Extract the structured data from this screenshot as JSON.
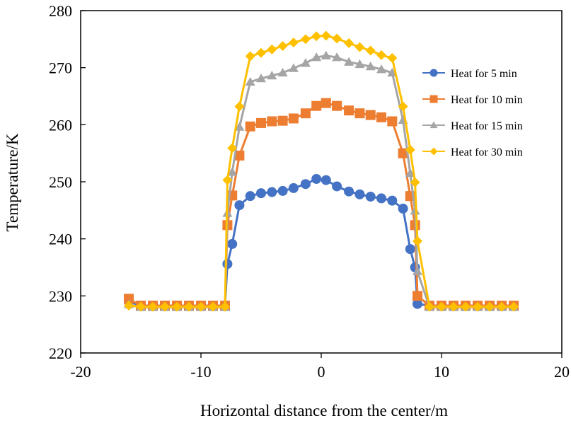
{
  "chart_data": {
    "type": "line",
    "title": "",
    "xlabel": "Horizontal distance from the center/m",
    "ylabel": "Temperature/K",
    "xlim": [
      -20,
      20
    ],
    "ylim": [
      220,
      280
    ],
    "xticks": [
      -20,
      -10,
      0,
      10,
      20
    ],
    "yticks": [
      220,
      230,
      240,
      250,
      260,
      270,
      280
    ],
    "grid": false,
    "legend_position": "right",
    "series": [
      {
        "name": "Heat for 5 min",
        "color": "#4472C4",
        "marker": "circle",
        "x": [
          -16,
          -15,
          -14,
          -13,
          -12,
          -11,
          -10,
          -9,
          -8,
          -7.8,
          -7.4,
          -6.8,
          -5.9,
          -5,
          -4.1,
          -3.2,
          -2.3,
          -1.3,
          -0.4,
          0.4,
          1.3,
          2.3,
          3.2,
          4.1,
          5,
          5.9,
          6.8,
          7.4,
          7.8,
          8,
          9,
          10,
          11,
          12,
          13,
          14,
          15,
          16
        ],
        "y": [
          229,
          228.3,
          228.3,
          228.3,
          228.3,
          228.3,
          228.3,
          228.3,
          228.3,
          235.6,
          239.1,
          245.9,
          247.5,
          248,
          248.2,
          248.4,
          248.9,
          249.6,
          250.5,
          250.3,
          249.2,
          248.3,
          247.8,
          247.4,
          247.1,
          246.7,
          245.3,
          238.2,
          235,
          228.6,
          228.3,
          228.3,
          228.3,
          228.3,
          228.3,
          228.3,
          228.3,
          228.3
        ]
      },
      {
        "name": "Heat for 10 min",
        "color": "#ED7D31",
        "marker": "square",
        "x": [
          -16,
          -15,
          -14,
          -13,
          -12,
          -11,
          -10,
          -9,
          -8,
          -7.8,
          -7.4,
          -6.8,
          -5.9,
          -5,
          -4.1,
          -3.2,
          -2.3,
          -1.3,
          -0.4,
          0.4,
          1.3,
          2.3,
          3.2,
          4.1,
          5,
          5.9,
          6.8,
          7.4,
          7.8,
          8,
          9,
          10,
          11,
          12,
          13,
          14,
          15,
          16
        ],
        "y": [
          229.5,
          228.3,
          228.3,
          228.3,
          228.3,
          228.3,
          228.3,
          228.3,
          228.3,
          242.4,
          247.6,
          254.6,
          259.7,
          260.3,
          260.6,
          260.7,
          261.1,
          262,
          263.3,
          263.8,
          263.3,
          262.5,
          262,
          261.7,
          261.3,
          260.6,
          255,
          247.5,
          242.4,
          230,
          228.3,
          228.3,
          228.3,
          228.3,
          228.3,
          228.3,
          228.3,
          228.3
        ]
      },
      {
        "name": "Heat for 15 min",
        "color": "#A5A5A5",
        "marker": "triangle",
        "x": [
          -16,
          -15,
          -14,
          -13,
          -12,
          -11,
          -10,
          -9,
          -8,
          -7.8,
          -7.4,
          -6.8,
          -5.9,
          -5,
          -4.1,
          -3.2,
          -2.3,
          -1.3,
          -0.4,
          0.4,
          1.3,
          2.3,
          3.2,
          4.1,
          5,
          5.9,
          6.8,
          7.4,
          7.8,
          8,
          9,
          10,
          11,
          12,
          13,
          14,
          15,
          16
        ],
        "y": [
          228.5,
          228,
          228,
          228,
          228,
          228,
          228,
          228,
          228,
          244.5,
          251.7,
          259.6,
          267.5,
          268.1,
          268.6,
          269.1,
          269.9,
          270.8,
          271.8,
          272.1,
          271.8,
          271,
          270.6,
          270.2,
          269.7,
          269.1,
          260.8,
          251.5,
          244.9,
          234.3,
          228,
          228,
          228,
          228,
          228,
          228,
          228,
          228
        ]
      },
      {
        "name": "Heat for 30 min",
        "color": "#FFC000",
        "marker": "diamond",
        "x": [
          -16,
          -15,
          -14,
          -13,
          -12,
          -11,
          -10,
          -9,
          -8,
          -7.8,
          -7.4,
          -6.8,
          -5.9,
          -5,
          -4.1,
          -3.2,
          -2.3,
          -1.3,
          -0.4,
          0.4,
          1.3,
          2.3,
          3.2,
          4.1,
          5,
          5.9,
          6.8,
          7.4,
          7.8,
          8,
          9,
          10,
          11,
          12,
          13,
          14,
          15,
          16
        ],
        "y": [
          228.3,
          228.1,
          228.1,
          228.1,
          228.1,
          228.1,
          228.1,
          228.1,
          228.1,
          250.3,
          255.9,
          263.2,
          272,
          272.6,
          273.2,
          273.8,
          274.4,
          275,
          275.5,
          275.6,
          275.1,
          274.3,
          273.6,
          273,
          272.2,
          271.7,
          263.2,
          255.6,
          249.9,
          239.6,
          228.1,
          228.1,
          228.1,
          228.1,
          228.1,
          228.1,
          228.1,
          228.1
        ]
      }
    ]
  }
}
